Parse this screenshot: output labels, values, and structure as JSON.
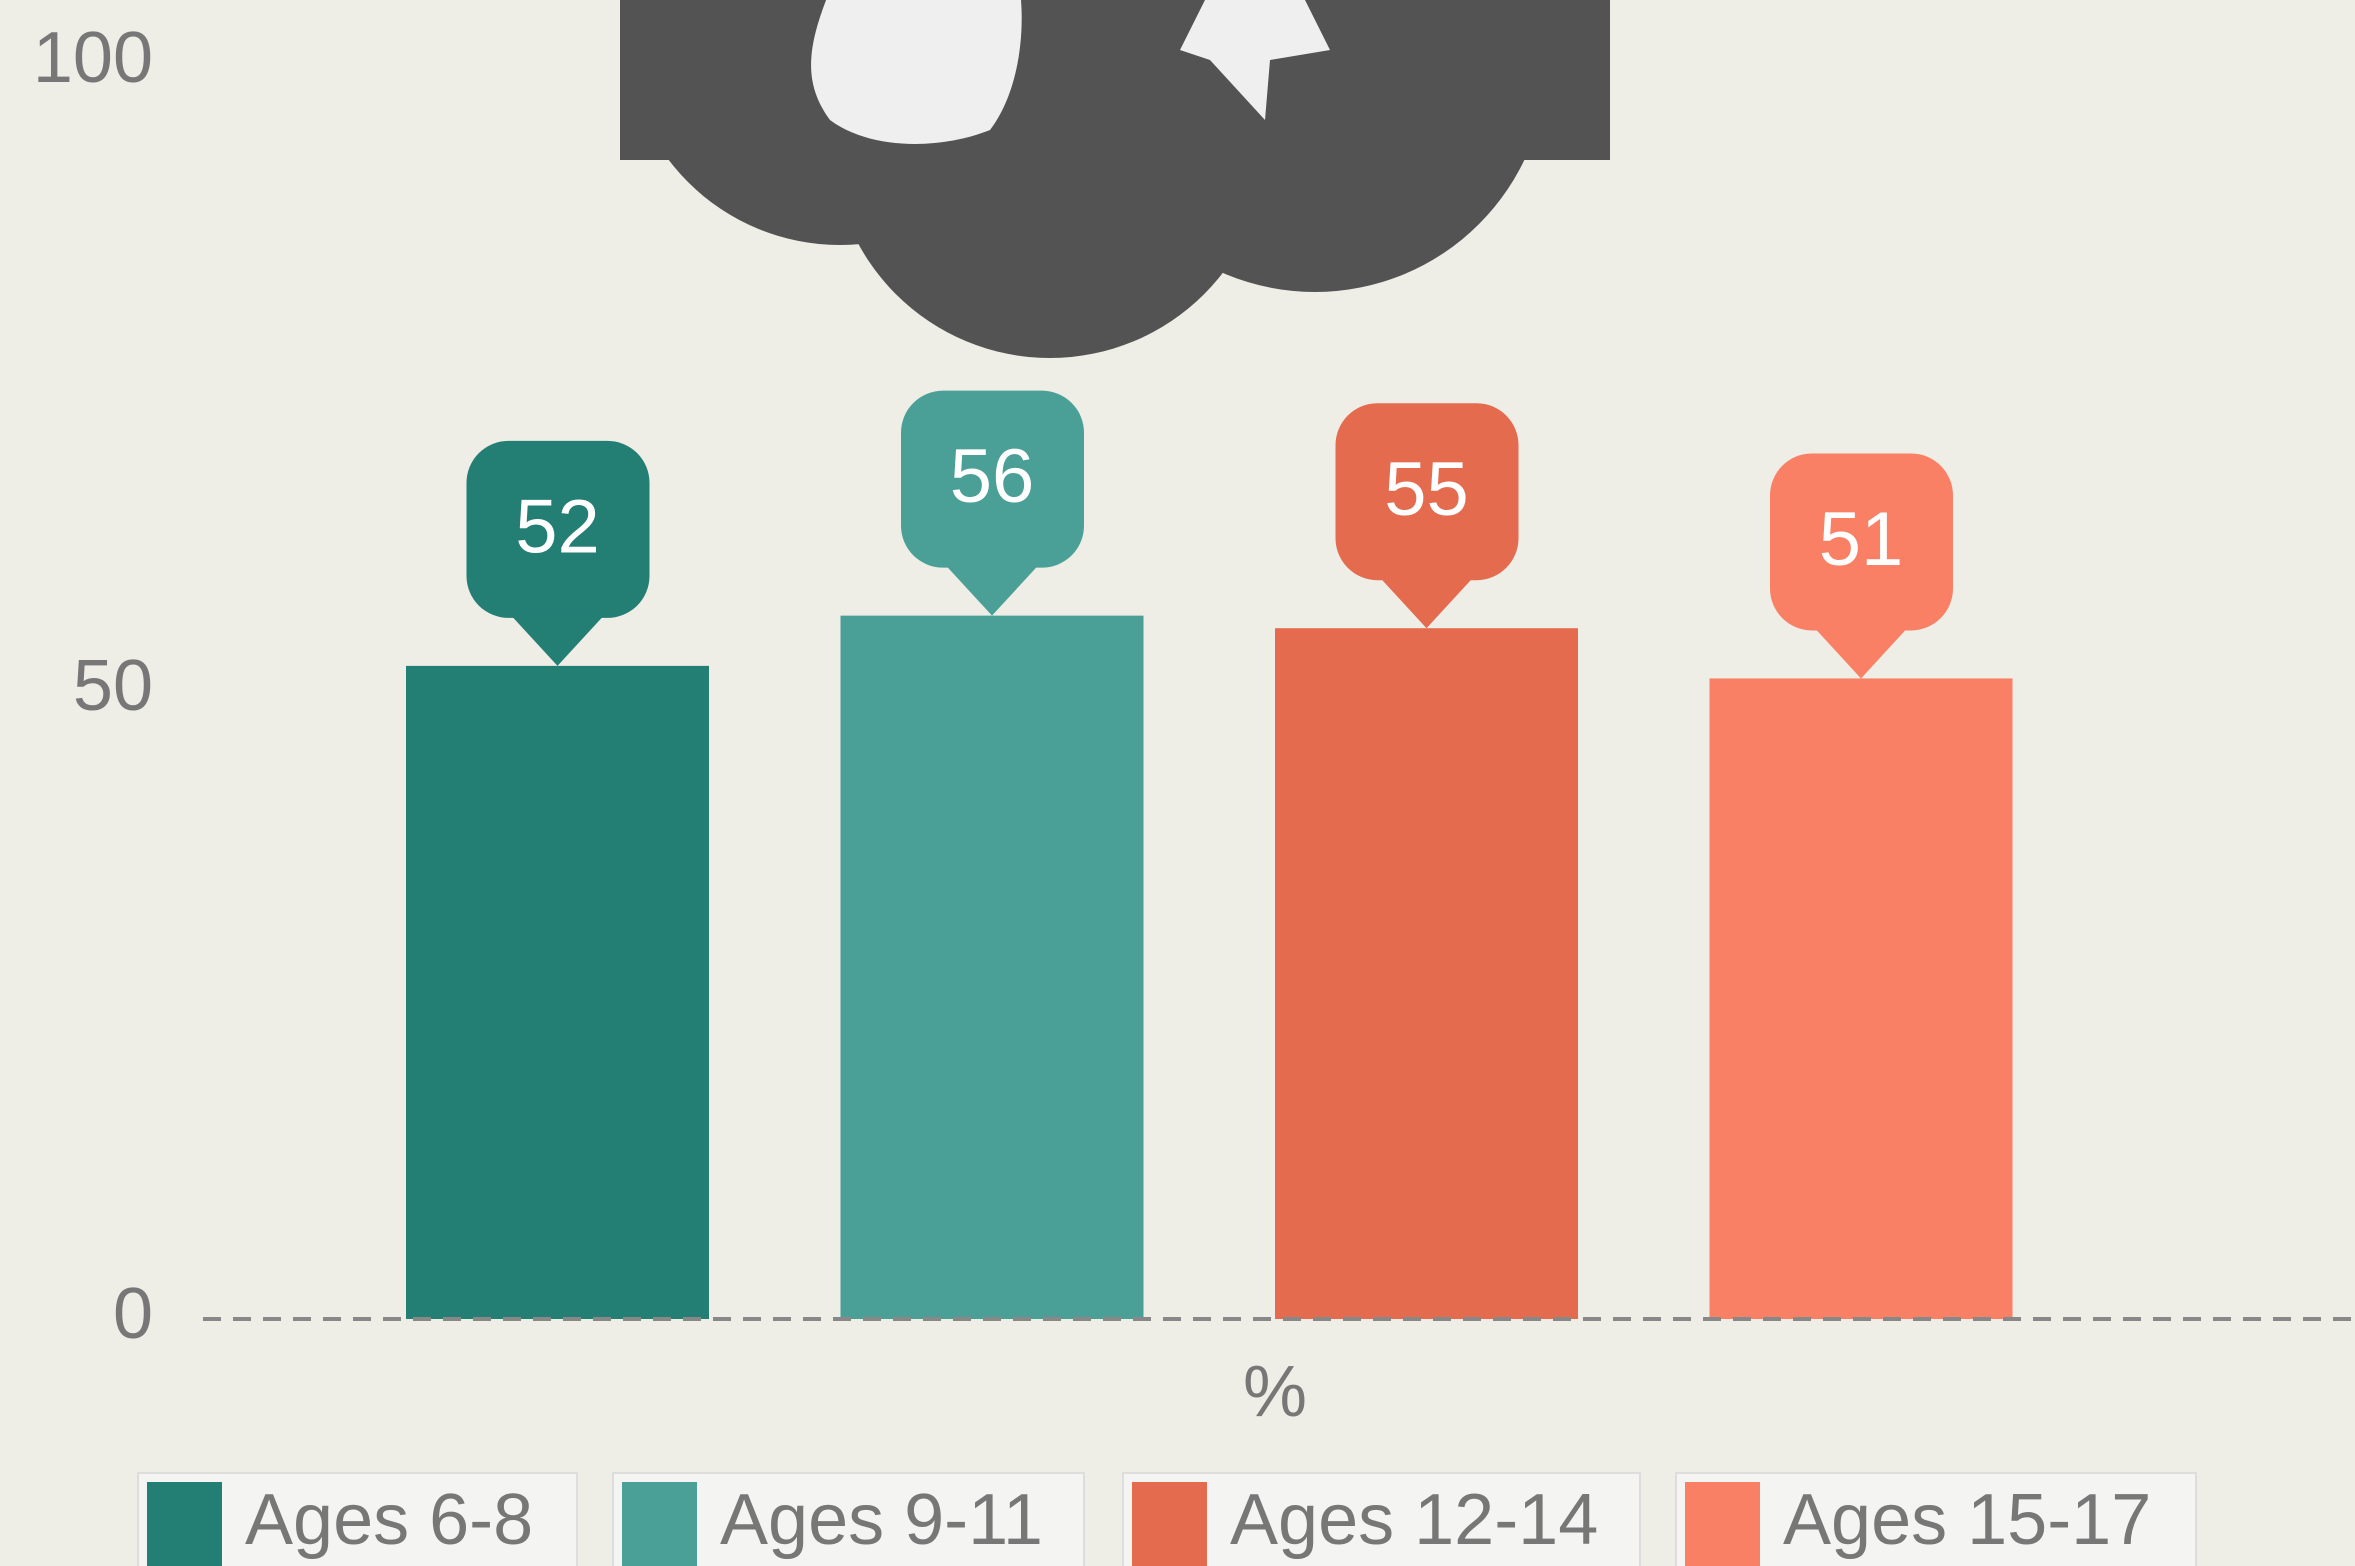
{
  "chart_data": {
    "type": "bar",
    "x_label": "%",
    "series": [
      {
        "name": "Ages 6-8",
        "color": "#237e74",
        "values": [
          52
        ]
      },
      {
        "name": "Ages 9-11",
        "color": "#4aa097",
        "values": [
          56
        ]
      },
      {
        "name": "Ages 12-14",
        "color": "#e56b4e",
        "values": [
          55
        ]
      },
      {
        "name": "Ages 15-17",
        "color": "#f98065",
        "values": [
          51
        ]
      }
    ],
    "ylim": [
      0,
      100
    ],
    "yticks": [
      0,
      50,
      100
    ],
    "legend": "bottom"
  }
}
